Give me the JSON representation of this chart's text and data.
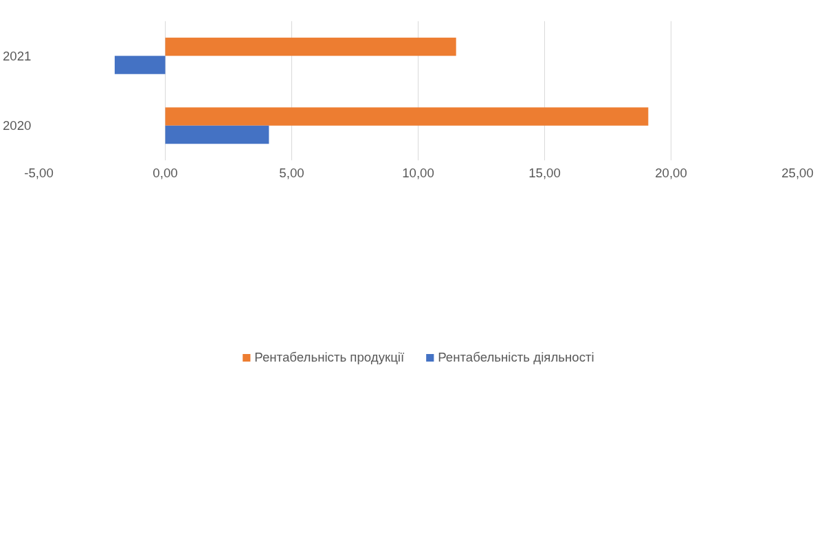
{
  "chart_data": {
    "type": "bar",
    "orientation": "horizontal",
    "categories": [
      "2021",
      "2020"
    ],
    "series": [
      {
        "name": "Рентабельність продукції",
        "color": "#ed7d31",
        "values": [
          11.5,
          19.1
        ]
      },
      {
        "name": "Рентабельність діяльності",
        "color": "#4472c4",
        "values": [
          -2.0,
          4.1
        ]
      }
    ],
    "xlim": [
      -5,
      25
    ],
    "xticks": [
      {
        "value": -5,
        "label": "-5,00"
      },
      {
        "value": 0,
        "label": "0,00"
      },
      {
        "value": 5,
        "label": "5,00"
      },
      {
        "value": 10,
        "label": "10,00"
      },
      {
        "value": 15,
        "label": "15,00"
      },
      {
        "value": 20,
        "label": "20,00"
      },
      {
        "value": 25,
        "label": "25,00"
      }
    ],
    "grid": "x",
    "legend": "bottom"
  }
}
